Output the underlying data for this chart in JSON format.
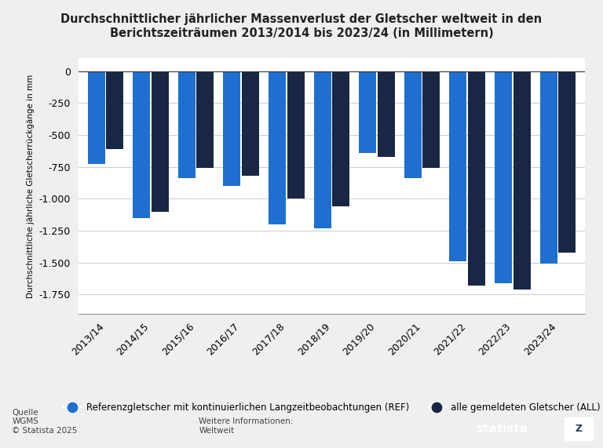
{
  "title_line1": "Durchschnittlicher jährlicher Massenverlust der Gletscher weltweit in den",
  "title_line2": "Berichtszeiträumen 2013/2014 bis 2023/24 (in Millimetern)",
  "ylabel": "Durchschnittliche jährliche Gletscherrückgänge in mm",
  "categories": [
    "2013/14",
    "2014/15",
    "2015/16",
    "2016/17",
    "2017/18",
    "2018/19",
    "2019/20",
    "2020/21",
    "2021/22",
    "2022/23",
    "2023/24"
  ],
  "ref_values": [
    -730,
    -1150,
    -840,
    -900,
    -1200,
    -1230,
    -640,
    -840,
    -1490,
    -1660,
    -1510
  ],
  "all_values": [
    -610,
    -1100,
    -760,
    -820,
    -1000,
    -1060,
    -670,
    -760,
    -1680,
    -1710,
    -1420
  ],
  "ref_color": "#1f6fd0",
  "all_color": "#1a2744",
  "ylim_min": -1900,
  "ylim_max": 100,
  "yticks": [
    0,
    -250,
    -500,
    -750,
    -1000,
    -1250,
    -1500,
    -1750
  ],
  "legend_ref": "Referenzgletscher mit kontinuierlichen Langzeitbeobachtungen (REF)",
  "legend_all": "alle gemeldeten Gletscher (ALL)",
  "source_label": "Quelle\nWGMS\n© Statista 2025",
  "info_label": "Weitere Informationen:\nWeltweit",
  "background_color": "#efefef",
  "plot_background": "#ffffff"
}
